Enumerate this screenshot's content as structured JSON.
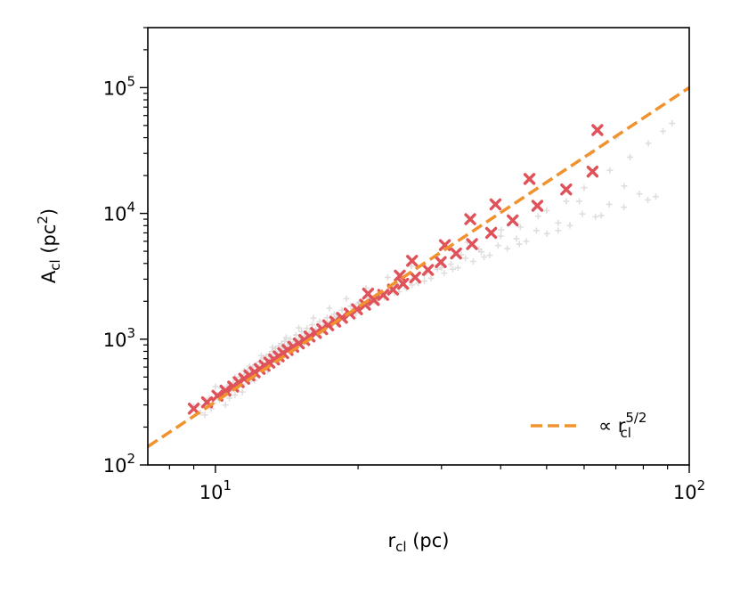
{
  "chart_data": {
    "type": "scatter",
    "x_scale": "log",
    "y_scale": "log",
    "xlim": [
      7.2,
      100
    ],
    "ylim": [
      100,
      300000
    ],
    "xlabel": {
      "base": "r",
      "sub": "cl",
      "rest": " (pc)"
    },
    "ylabel": {
      "base": "A",
      "sub": "cl",
      "rest": " (pc",
      "sup": "2",
      "end": ")"
    },
    "x_ticks": [
      {
        "value": 10,
        "base": "10",
        "exp": "1"
      },
      {
        "value": 100,
        "base": "10",
        "exp": "2"
      }
    ],
    "y_ticks": [
      {
        "value": 100,
        "base": "10",
        "exp": "2"
      },
      {
        "value": 1000,
        "base": "10",
        "exp": "3"
      },
      {
        "value": 10000,
        "base": "10",
        "exp": "4"
      },
      {
        "value": 100000,
        "base": "10",
        "exp": "5"
      }
    ],
    "series": [
      {
        "kind": "scatter",
        "marker": "+",
        "color": "#c9c3c0",
        "opacity": 0.55,
        "points": [
          [
            9.0,
            290
          ],
          [
            9.2,
            300
          ],
          [
            9.5,
            250
          ],
          [
            9.7,
            340
          ],
          [
            9.9,
            310
          ],
          [
            10.1,
            360
          ],
          [
            10.2,
            330
          ],
          [
            10.4,
            380
          ],
          [
            10.5,
            300
          ],
          [
            10.6,
            420
          ],
          [
            10.8,
            390
          ],
          [
            10.9,
            450
          ],
          [
            11.0,
            360
          ],
          [
            11.1,
            470
          ],
          [
            11.2,
            420
          ],
          [
            11.3,
            500
          ],
          [
            11.4,
            440
          ],
          [
            11.5,
            520
          ],
          [
            11.6,
            480
          ],
          [
            11.7,
            560
          ],
          [
            11.8,
            460
          ],
          [
            11.9,
            540
          ],
          [
            12.0,
            600
          ],
          [
            12.1,
            520
          ],
          [
            12.2,
            620
          ],
          [
            12.3,
            560
          ],
          [
            12.4,
            660
          ],
          [
            12.5,
            590
          ],
          [
            12.6,
            700
          ],
          [
            12.7,
            620
          ],
          [
            12.8,
            730
          ],
          [
            12.9,
            650
          ],
          [
            13.0,
            760
          ],
          [
            13.1,
            690
          ],
          [
            13.2,
            800
          ],
          [
            13.3,
            720
          ],
          [
            13.4,
            840
          ],
          [
            13.5,
            760
          ],
          [
            13.6,
            880
          ],
          [
            13.7,
            800
          ],
          [
            13.8,
            920
          ],
          [
            13.9,
            840
          ],
          [
            14.0,
            960
          ],
          [
            14.2,
            900
          ],
          [
            14.4,
            1000
          ],
          [
            14.6,
            950
          ],
          [
            14.8,
            1080
          ],
          [
            15.0,
            1000
          ],
          [
            15.2,
            1150
          ],
          [
            15.4,
            1060
          ],
          [
            15.6,
            1220
          ],
          [
            15.8,
            1130
          ],
          [
            16.0,
            1300
          ],
          [
            16.3,
            1200
          ],
          [
            16.6,
            1380
          ],
          [
            16.9,
            1290
          ],
          [
            17.2,
            1480
          ],
          [
            17.5,
            1380
          ],
          [
            17.8,
            1580
          ],
          [
            18.1,
            1470
          ],
          [
            18.5,
            1700
          ],
          [
            18.9,
            1590
          ],
          [
            19.3,
            1830
          ],
          [
            19.7,
            1700
          ],
          [
            20.1,
            1960
          ],
          [
            20.6,
            1830
          ],
          [
            21.1,
            2120
          ],
          [
            21.6,
            1980
          ],
          [
            22.1,
            2300
          ],
          [
            22.7,
            2150
          ],
          [
            23.3,
            2500
          ],
          [
            23.9,
            2330
          ],
          [
            24.6,
            2720
          ],
          [
            25.3,
            2540
          ],
          [
            26.0,
            2980
          ],
          [
            26.8,
            2790
          ],
          [
            27.6,
            3250
          ],
          [
            28.5,
            3050
          ],
          [
            29.4,
            3600
          ],
          [
            30.4,
            3350
          ],
          [
            31.4,
            3950
          ],
          [
            32.5,
            3700
          ],
          [
            33.7,
            4400
          ],
          [
            35.0,
            4150
          ],
          [
            36.4,
            4950
          ],
          [
            37.9,
            4650
          ],
          [
            39.5,
            5550
          ],
          [
            41.3,
            5250
          ],
          [
            43.2,
            6300
          ],
          [
            45.3,
            6000
          ],
          [
            47.6,
            7300
          ],
          [
            50.1,
            6900
          ],
          [
            52.9,
            8400
          ],
          [
            56.0,
            8000
          ],
          [
            59.5,
            9900
          ],
          [
            63.4,
            9400
          ],
          [
            67.8,
            11800
          ],
          [
            72.8,
            11200
          ],
          [
            78.5,
            14300
          ],
          [
            85.0,
            13600
          ],
          [
            9.3,
            260
          ],
          [
            9.8,
            280
          ],
          [
            10.3,
            410
          ],
          [
            10.7,
            340
          ],
          [
            11.0,
            500
          ],
          [
            11.4,
            380
          ],
          [
            11.8,
            610
          ],
          [
            12.1,
            470
          ],
          [
            12.5,
            740
          ],
          [
            12.9,
            560
          ],
          [
            13.2,
            860
          ],
          [
            13.6,
            660
          ],
          [
            14.1,
            1030
          ],
          [
            14.5,
            790
          ],
          [
            15.0,
            1230
          ],
          [
            15.5,
            950
          ],
          [
            16.1,
            1470
          ],
          [
            16.7,
            1120
          ],
          [
            17.4,
            1760
          ],
          [
            18.1,
            1330
          ],
          [
            18.9,
            2100
          ],
          [
            19.8,
            1610
          ],
          [
            20.8,
            2550
          ],
          [
            21.9,
            1960
          ],
          [
            23.1,
            3100
          ],
          [
            24.4,
            2380
          ],
          [
            25.9,
            3800
          ],
          [
            27.6,
            2900
          ],
          [
            29.5,
            4700
          ],
          [
            31.7,
            3600
          ],
          [
            34.1,
            5900
          ],
          [
            36.9,
            4500
          ],
          [
            40.1,
            7400
          ],
          [
            43.8,
            5700
          ],
          [
            48.0,
            9500
          ],
          [
            52.9,
            7300
          ],
          [
            58.6,
            12500
          ],
          [
            65.2,
            9600
          ],
          [
            72.9,
            16500
          ],
          [
            81.8,
            12800
          ],
          [
            10.0,
            420
          ],
          [
            11.5,
            560
          ],
          [
            12.0,
            500
          ],
          [
            13.0,
            700
          ],
          [
            14.0,
            860
          ],
          [
            15.0,
            900
          ],
          [
            16.0,
            1200
          ],
          [
            17.0,
            1250
          ],
          [
            18.0,
            1500
          ],
          [
            19.0,
            1550
          ],
          [
            20.0,
            1900
          ],
          [
            22.0,
            2100
          ],
          [
            24.0,
            2650
          ],
          [
            26.0,
            2700
          ],
          [
            28.0,
            3500
          ],
          [
            30.0,
            3700
          ],
          [
            33.0,
            4700
          ],
          [
            36.0,
            5200
          ],
          [
            40.0,
            6600
          ],
          [
            44.0,
            7800
          ],
          [
            50.0,
            10500
          ],
          [
            55.0,
            12500
          ],
          [
            60.0,
            16000
          ],
          [
            68.0,
            22000
          ],
          [
            75.0,
            28000
          ],
          [
            82.0,
            36000
          ],
          [
            88.0,
            45000
          ],
          [
            92.0,
            52000
          ],
          [
            62.0,
            30000
          ],
          [
            70.0,
            40000
          ]
        ]
      },
      {
        "kind": "scatter",
        "marker": "x",
        "color": "#e0525a",
        "points": [
          [
            9.0,
            280
          ],
          [
            9.6,
            315
          ],
          [
            10.1,
            355
          ],
          [
            10.5,
            390
          ],
          [
            10.9,
            420
          ],
          [
            11.2,
            455
          ],
          [
            11.5,
            485
          ],
          [
            11.8,
            515
          ],
          [
            12.1,
            545
          ],
          [
            12.4,
            580
          ],
          [
            12.7,
            615
          ],
          [
            13.0,
            650
          ],
          [
            13.3,
            690
          ],
          [
            13.6,
            730
          ],
          [
            13.9,
            775
          ],
          [
            14.2,
            820
          ],
          [
            14.6,
            870
          ],
          [
            15.0,
            925
          ],
          [
            15.4,
            985
          ],
          [
            15.8,
            1050
          ],
          [
            16.3,
            1120
          ],
          [
            16.8,
            1200
          ],
          [
            17.3,
            1290
          ],
          [
            17.9,
            1380
          ],
          [
            18.5,
            1480
          ],
          [
            19.2,
            1600
          ],
          [
            19.9,
            1730
          ],
          [
            20.7,
            1880
          ],
          [
            21.6,
            2050
          ],
          [
            22.6,
            2250
          ],
          [
            23.7,
            2480
          ],
          [
            24.9,
            2760
          ],
          [
            26.4,
            3100
          ],
          [
            28.1,
            3550
          ],
          [
            29.9,
            4100
          ],
          [
            32.2,
            4800
          ],
          [
            34.8,
            5700
          ],
          [
            38.2,
            7000
          ],
          [
            42.4,
            8800
          ],
          [
            47.8,
            11500
          ],
          [
            55.0,
            15500
          ],
          [
            62.5,
            21500
          ],
          [
            30.5,
            5600
          ],
          [
            34.5,
            9000
          ],
          [
            39.0,
            11800
          ],
          [
            46.0,
            18800
          ],
          [
            64.0,
            46000
          ],
          [
            26.0,
            4200
          ],
          [
            24.5,
            3200
          ],
          [
            21.0,
            2300
          ]
        ]
      },
      {
        "kind": "line",
        "style": "dashed",
        "color": "#f0922e",
        "power": 2.5,
        "x": [
          7.2,
          100
        ],
        "y": [
          140,
          100000
        ]
      }
    ],
    "legend": {
      "position": "bottom-right",
      "prefix": "∝ ",
      "base": "r",
      "sup": "5/2",
      "sub": "cl"
    },
    "grid": false
  }
}
